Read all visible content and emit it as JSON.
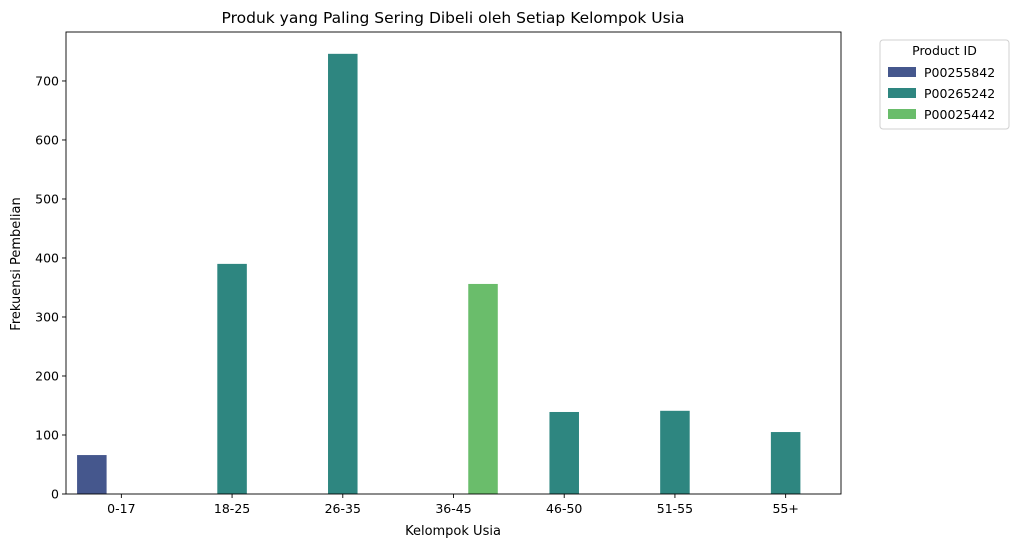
{
  "chart_data": {
    "type": "bar",
    "title": "Produk yang Paling Sering Dibeli oleh Setiap Kelompok Usia",
    "xlabel": "Kelompok Usia",
    "ylabel": "Frekuensi Pembelian",
    "categories": [
      "0-17",
      "18-25",
      "26-35",
      "36-45",
      "46-50",
      "51-55",
      "55+"
    ],
    "ylim": [
      0,
      783
    ],
    "yticks": [
      0,
      100,
      200,
      300,
      400,
      500,
      600,
      700
    ],
    "grid": false,
    "legend": {
      "title": "Product ID",
      "placement": "outside-top-right"
    },
    "series": [
      {
        "name": "P00255842",
        "color": "#45578d",
        "values": [
          66,
          null,
          null,
          null,
          null,
          null,
          null
        ]
      },
      {
        "name": "P00265242",
        "color": "#2e8680",
        "values": [
          null,
          390,
          746,
          null,
          139,
          141,
          105
        ]
      },
      {
        "name": "P00025442",
        "color": "#6abd6b",
        "values": [
          null,
          null,
          null,
          356,
          null,
          null,
          null
        ]
      }
    ]
  }
}
